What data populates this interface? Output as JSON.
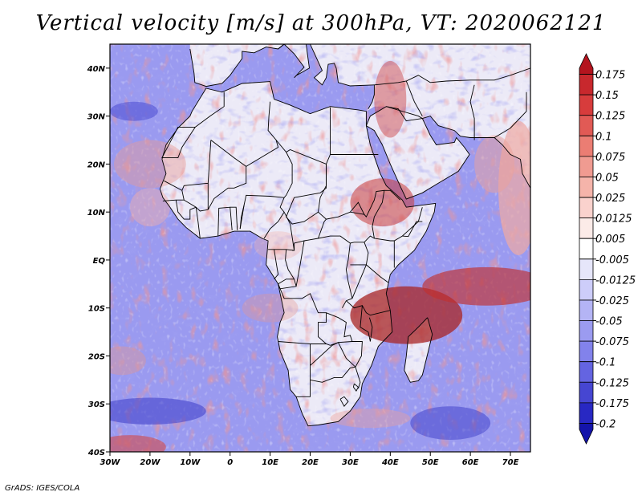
{
  "title": "Vertical velocity [m/s] at 300hPa, VT: 2020062121",
  "footer": "GrADS: IGES/COLA",
  "map": {
    "region": "Africa",
    "variable": "Vertical velocity",
    "units": "m/s",
    "level": "300hPa",
    "valid_time": "2020062121",
    "lon_range": [
      -30,
      75
    ],
    "lat_range": [
      -40,
      45
    ],
    "x_ticks": [
      {
        "value": -30,
        "label": "30W"
      },
      {
        "value": -20,
        "label": "20W"
      },
      {
        "value": -10,
        "label": "10W"
      },
      {
        "value": 0,
        "label": "0"
      },
      {
        "value": 10,
        "label": "10E"
      },
      {
        "value": 20,
        "label": "20E"
      },
      {
        "value": 30,
        "label": "30E"
      },
      {
        "value": 40,
        "label": "40E"
      },
      {
        "value": 50,
        "label": "50E"
      },
      {
        "value": 60,
        "label": "60E"
      },
      {
        "value": 70,
        "label": "70E"
      }
    ],
    "y_ticks": [
      {
        "value": 40,
        "label": "40N"
      },
      {
        "value": 30,
        "label": "30N"
      },
      {
        "value": 20,
        "label": "20N"
      },
      {
        "value": 10,
        "label": "10N"
      },
      {
        "value": 0,
        "label": "EQ"
      },
      {
        "value": -10,
        "label": "10S"
      },
      {
        "value": -20,
        "label": "20S"
      },
      {
        "value": -30,
        "label": "30S"
      },
      {
        "value": -40,
        "label": "40S"
      }
    ]
  },
  "colorbar": {
    "levels": [
      "0.175",
      "0.15",
      "0.125",
      "0.1",
      "0.075",
      "0.05",
      "0.025",
      "0.0125",
      "0.005",
      "-0.005",
      "-0.0125",
      "-0.025",
      "-0.05",
      "-0.075",
      "-0.1",
      "-0.125",
      "-0.175",
      "-0.2"
    ],
    "colors": [
      "#b4141e",
      "#c8282d",
      "#d73c3c",
      "#e15a55",
      "#eb7d73",
      "#f09b91",
      "#f5b4aa",
      "#fad2cd",
      "#fcebe8",
      "#ffffff",
      "#e6e6fa",
      "#cdcdfa",
      "#b4b4f5",
      "#9b9bf0",
      "#8282eb",
      "#6464e1",
      "#4646d2",
      "#2828c3",
      "#1414aa"
    ]
  },
  "palette": {
    "ocean_base": "#9a9af0",
    "land_base": "#eceaf7",
    "pos_light": "#f3b3ab",
    "pos_strong": "#d84848",
    "neg_light": "#b7b7f4",
    "neg_strong": "#5050d8",
    "border": "#000000"
  }
}
